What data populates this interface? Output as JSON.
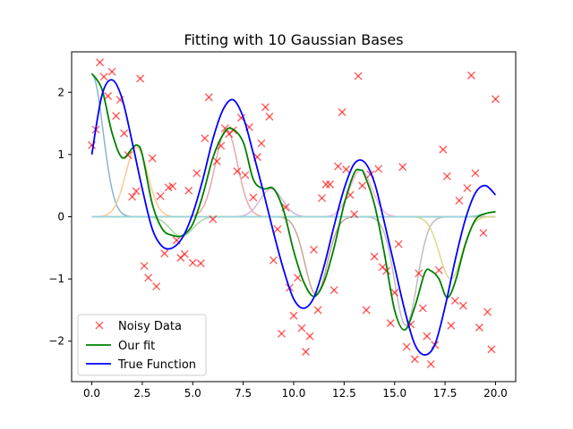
{
  "chart_data": {
    "type": "line",
    "title": "Fitting with 10 Gaussian Bases",
    "xlabel": "",
    "ylabel": "",
    "xlim": [
      -1.0,
      21.0
    ],
    "ylim": [
      -2.65,
      2.65
    ],
    "xticks": [
      0.0,
      2.5,
      5.0,
      7.5,
      10.0,
      12.5,
      15.0,
      17.5,
      20.0
    ],
    "xtick_labels": [
      "0.0",
      "2.5",
      "5.0",
      "7.5",
      "10.0",
      "12.5",
      "15.0",
      "17.5",
      "20.0"
    ],
    "yticks": [
      -2,
      -1,
      0,
      1,
      2
    ],
    "ytick_labels": [
      "−2",
      "−1",
      "0",
      "1",
      "2"
    ],
    "grid": false,
    "legend": {
      "location": "lower-left",
      "entries": [
        {
          "label": "Noisy Data",
          "color": "#ff0000",
          "marker": "x"
        },
        {
          "label": "Our fit",
          "color": "#008000"
        },
        {
          "label": "True Function",
          "color": "#0000ff"
        }
      ]
    },
    "true_function": {
      "name": "True Function",
      "color": "#0000ff",
      "x": [
        0.0,
        0.5,
        1.0,
        1.5,
        2.0,
        2.5,
        3.0,
        3.5,
        4.0,
        4.5,
        5.0,
        5.5,
        6.0,
        6.5,
        7.0,
        7.5,
        8.0,
        8.5,
        9.0,
        9.5,
        10.0,
        10.5,
        11.0,
        11.5,
        12.0,
        12.5,
        13.0,
        13.5,
        14.0,
        14.5,
        15.0,
        15.5,
        16.0,
        16.5,
        17.0,
        17.5,
        18.0,
        18.5,
        19.0,
        19.5,
        20.0
      ],
      "y": [
        1.0,
        1.95,
        2.2,
        1.9,
        1.2,
        0.45,
        -0.2,
        -0.48,
        -0.5,
        -0.33,
        0.05,
        0.6,
        1.25,
        1.72,
        1.88,
        1.6,
        1.02,
        0.4,
        -0.25,
        -0.85,
        -1.32,
        -1.47,
        -1.3,
        -0.8,
        -0.15,
        0.45,
        0.85,
        0.88,
        0.55,
        -0.1,
        -0.8,
        -1.5,
        -2.05,
        -2.22,
        -2.05,
        -1.45,
        -0.7,
        -0.05,
        0.38,
        0.5,
        0.35
      ]
    },
    "our_fit": {
      "name": "Our fit",
      "color": "#008000",
      "x": [
        0.0,
        0.5,
        1.0,
        1.5,
        2.0,
        2.25,
        2.5,
        3.0,
        3.5,
        4.0,
        4.5,
        5.0,
        5.5,
        6.0,
        6.5,
        6.9,
        7.5,
        8.0,
        8.5,
        9.0,
        9.5,
        10.0,
        10.5,
        11.0,
        11.5,
        12.0,
        12.5,
        13.0,
        13.3,
        13.5,
        14.0,
        14.5,
        15.0,
        15.5,
        16.0,
        16.5,
        16.8,
        17.2,
        17.6,
        18.0,
        18.5,
        19.0,
        19.5,
        20.0
      ],
      "y": [
        2.3,
        2.05,
        1.35,
        0.95,
        1.1,
        1.15,
        1.0,
        0.2,
        -0.2,
        -0.3,
        -0.3,
        -0.12,
        0.35,
        0.95,
        1.32,
        1.42,
        1.2,
        0.6,
        0.45,
        0.45,
        0.1,
        -0.55,
        -1.05,
        -1.28,
        -1.05,
        -0.5,
        0.2,
        0.7,
        0.75,
        0.68,
        0.2,
        -0.6,
        -1.5,
        -1.82,
        -1.45,
        -0.9,
        -0.87,
        -1.0,
        -1.3,
        -1.05,
        -0.45,
        -0.05,
        0.05,
        0.08
      ]
    },
    "basis_functions": [
      {
        "center": 0.0,
        "amplitude": 2.3,
        "sigma": 0.55,
        "color": "#8ab4d0"
      },
      {
        "center": 2.22,
        "amplitude": 1.12,
        "sigma": 0.55,
        "color": "#ffc890"
      },
      {
        "center": 4.44,
        "amplitude": -0.32,
        "sigma": 0.55,
        "color": "#a6d8a6"
      },
      {
        "center": 6.67,
        "amplitude": 1.4,
        "sigma": 0.55,
        "color": "#e9a8a8"
      },
      {
        "center": 8.89,
        "amplitude": 0.45,
        "sigma": 0.55,
        "color": "#cdb7e1"
      },
      {
        "center": 11.11,
        "amplitude": -1.25,
        "sigma": 0.55,
        "color": "#c9a49c"
      },
      {
        "center": 13.33,
        "amplitude": 0.75,
        "sigma": 0.55,
        "color": "#f2b6e0"
      },
      {
        "center": 15.56,
        "amplitude": -1.75,
        "sigma": 0.55,
        "color": "#bdbdbd"
      },
      {
        "center": 17.78,
        "amplitude": -1.0,
        "sigma": 0.55,
        "color": "#d9d98a"
      },
      {
        "center": 20.0,
        "amplitude": 0.08,
        "sigma": 0.55,
        "color": "#8fd8e0"
      }
    ],
    "noisy_data": {
      "name": "Noisy Data",
      "color": "#ff0000",
      "x": [
        0.0,
        0.2,
        0.4,
        0.6,
        0.8,
        1.0,
        1.2,
        1.4,
        1.6,
        1.8,
        2.0,
        2.2,
        2.4,
        2.6,
        2.8,
        3.0,
        3.2,
        3.4,
        3.6,
        3.8,
        4.0,
        4.2,
        4.4,
        4.6,
        4.8,
        5.0,
        5.2,
        5.4,
        5.6,
        5.8,
        6.0,
        6.2,
        6.4,
        6.6,
        6.8,
        7.0,
        7.2,
        7.4,
        7.6,
        7.8,
        8.0,
        8.2,
        8.4,
        8.6,
        8.8,
        9.0,
        9.2,
        9.4,
        9.6,
        9.8,
        10.0,
        10.2,
        10.4,
        10.6,
        10.8,
        11.0,
        11.2,
        11.4,
        11.6,
        11.8,
        12.0,
        12.2,
        12.4,
        12.6,
        12.8,
        13.0,
        13.2,
        13.4,
        13.6,
        13.8,
        14.0,
        14.2,
        14.4,
        14.6,
        14.8,
        15.0,
        15.2,
        15.4,
        15.6,
        15.8,
        16.0,
        16.2,
        16.4,
        16.6,
        16.8,
        17.0,
        17.2,
        17.4,
        17.6,
        17.8,
        18.0,
        18.2,
        18.4,
        18.6,
        18.8,
        19.0,
        19.2,
        19.4,
        19.6,
        19.8,
        20.0
      ],
      "y": [
        1.15,
        1.4,
        2.48,
        2.25,
        1.94,
        2.33,
        1.62,
        1.88,
        1.34,
        0.99,
        0.32,
        0.41,
        2.22,
        -0.79,
        -0.98,
        0.94,
        -1.12,
        0.33,
        -0.59,
        0.47,
        0.49,
        -0.38,
        -0.66,
        -0.6,
        0.42,
        -0.74,
        0.7,
        -0.75,
        1.26,
        1.92,
        -0.04,
        0.89,
        1.14,
        1.42,
        1.33,
        1.39,
        0.73,
        1.59,
        0.67,
        1.44,
        0.31,
        0.96,
        1.18,
        1.76,
        1.61,
        -0.7,
        -0.2,
        -1.88,
        0.15,
        -1.14,
        -1.59,
        -0.98,
        -1.79,
        -2.17,
        -1.92,
        -0.53,
        -1.5,
        0.3,
        0.52,
        0.52,
        -1.18,
        0.81,
        1.68,
        0.76,
        0.35,
        0.04,
        2.26,
        0.5,
        -1.5,
        0.68,
        -0.64,
        0.77,
        -0.81,
        -0.87,
        -1.71,
        -1.22,
        -0.44,
        0.8,
        -2.09,
        -1.73,
        -2.29,
        -0.91,
        -1.47,
        -1.92,
        -2.37,
        -2.06,
        -0.86,
        1.08,
        0.65,
        -1.75,
        -1.35,
        0.26,
        -1.43,
        0.46,
        2.27,
        0.7,
        -1.78,
        -0.26,
        -1.53,
        -2.13,
        1.89
      ]
    }
  }
}
